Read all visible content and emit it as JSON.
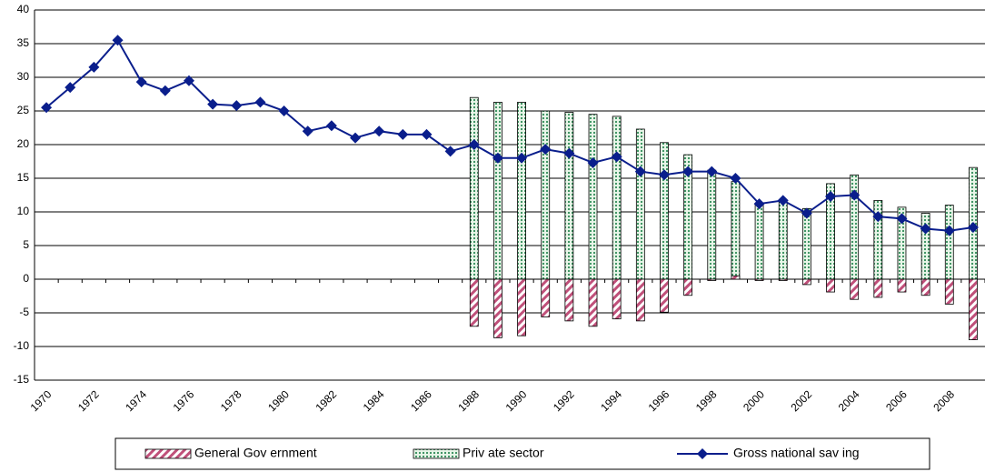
{
  "chart_data": {
    "type": "bar-line",
    "categories": [
      "1970",
      null,
      "1972",
      null,
      "1974",
      null,
      "1976",
      null,
      "1978",
      null,
      "1980",
      null,
      "1982",
      null,
      "1984",
      null,
      "1986",
      null,
      "1988",
      null,
      "1990",
      null,
      "1992",
      null,
      "1994",
      null,
      "1996",
      null,
      "1998",
      null,
      "2000",
      null,
      "2002",
      null,
      "2004",
      null,
      "2006",
      null,
      "2008",
      null
    ],
    "series": [
      {
        "name": "General Gov ernment",
        "type": "bar",
        "color": "#c0507a",
        "values": [
          null,
          null,
          null,
          null,
          null,
          null,
          null,
          null,
          null,
          null,
          null,
          null,
          null,
          null,
          null,
          null,
          null,
          null,
          -7,
          -8.7,
          -8.4,
          -5.6,
          -6.2,
          -7,
          -5.9,
          -6.2,
          -4.9,
          -2.4,
          -0.2,
          0.5,
          -0.2,
          -0.2,
          -0.8,
          -1.9,
          -3,
          -2.7,
          -1.9,
          -2.4,
          -3.7,
          -9
        ]
      },
      {
        "name": "Priv ate sector",
        "type": "bar",
        "color": "#2e8b57",
        "values": [
          null,
          null,
          null,
          null,
          null,
          null,
          null,
          null,
          null,
          null,
          null,
          null,
          null,
          null,
          null,
          null,
          null,
          null,
          27,
          26.3,
          26.3,
          25,
          24.8,
          24.5,
          24.2,
          22.3,
          20.3,
          18.5,
          16.2,
          14.5,
          11,
          11.5,
          10.5,
          14.2,
          15.5,
          11.7,
          10.7,
          9.8,
          11,
          16.6
        ]
      },
      {
        "name": "Gross national sav ing",
        "type": "line",
        "color": "#0a1e8c",
        "values": [
          25.5,
          28.5,
          31.5,
          35.5,
          29.3,
          28,
          29.5,
          26,
          25.8,
          26.3,
          25,
          22,
          22.8,
          21,
          22,
          21.5,
          21.5,
          19,
          20,
          18,
          18,
          19.3,
          18.7,
          17.3,
          18.2,
          16,
          15.5,
          16,
          16,
          15,
          11.2,
          11.7,
          9.8,
          12.3,
          12.5,
          9.3,
          9,
          7.5,
          7.2,
          7.7
        ]
      }
    ],
    "ylim": [
      -15,
      40
    ],
    "yticks": [
      -15,
      -10,
      -5,
      0,
      5,
      10,
      15,
      20,
      25,
      30,
      35,
      40
    ],
    "grid": true
  }
}
